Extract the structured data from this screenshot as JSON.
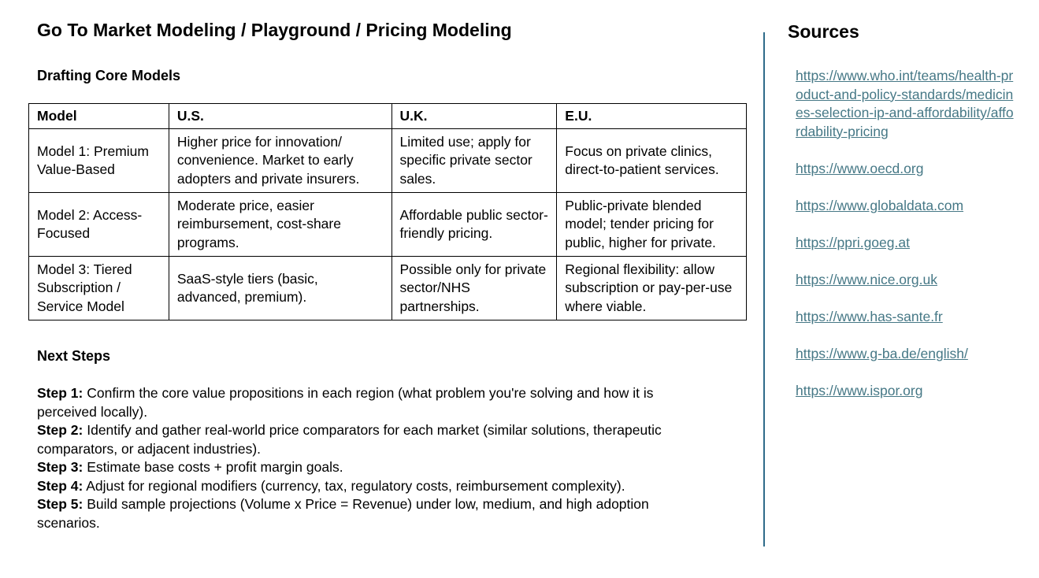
{
  "page": {
    "title": "Go To Market Modeling / Playground / Pricing Modeling"
  },
  "core_models": {
    "heading": "Drafting Core Models",
    "headers": [
      "Model",
      "U.S.",
      "U.K.",
      "E.U."
    ],
    "rows": [
      [
        "Model 1: Premium Value-Based",
        "Higher price for innovation/ convenience. Market to early adopters and private insurers.",
        "Limited use; apply for specific private sector sales.",
        "Focus on private clinics, direct-to-patient services."
      ],
      [
        "Model 2: Access-Focused",
        "Moderate price, easier reimbursement, cost-share programs.",
        "Affordable public sector-friendly pricing.",
        "Public-private blended model; tender pricing for public, higher for private."
      ],
      [
        "Model 3: Tiered Subscription / Service Model",
        "SaaS-style tiers (basic, advanced, premium).",
        "Possible only for private sector/NHS partnerships.",
        "Regional flexibility: allow subscription or pay-per-use where viable."
      ]
    ]
  },
  "next_steps": {
    "heading": "Next Steps",
    "steps": [
      {
        "label": "Step 1:",
        "text": " Confirm the core value propositions in each region (what problem you're solving and how it is perceived locally)."
      },
      {
        "label": "Step 2:",
        "text": " Identify and gather real-world price comparators for each market (similar solutions, therapeutic comparators, or adjacent industries)."
      },
      {
        "label": "Step 3:",
        "text": " Estimate base costs + profit margin goals."
      },
      {
        "label": "Step 4:",
        "text": " Adjust for regional modifiers (currency, tax, regulatory costs, reimbursement complexity)."
      },
      {
        "label": "Step 5:",
        "text": " Build sample projections (Volume x Price = Revenue) under low, medium, and high adoption scenarios."
      }
    ]
  },
  "sources": {
    "heading": "Sources",
    "link_color": "#467886",
    "divider_color": "#2e6b8a",
    "links": [
      "https://www.who.int/teams/health-product-and-policy-standards/medicines-selection-ip-and-affordability/affordability-pricing",
      "https://www.oecd.org",
      "https://www.globaldata.com",
      "https://ppri.goeg.at",
      "https://www.nice.org.uk",
      "https://www.has-sante.fr",
      "https://www.g-ba.de/english/",
      "https://www.ispor.org"
    ]
  }
}
